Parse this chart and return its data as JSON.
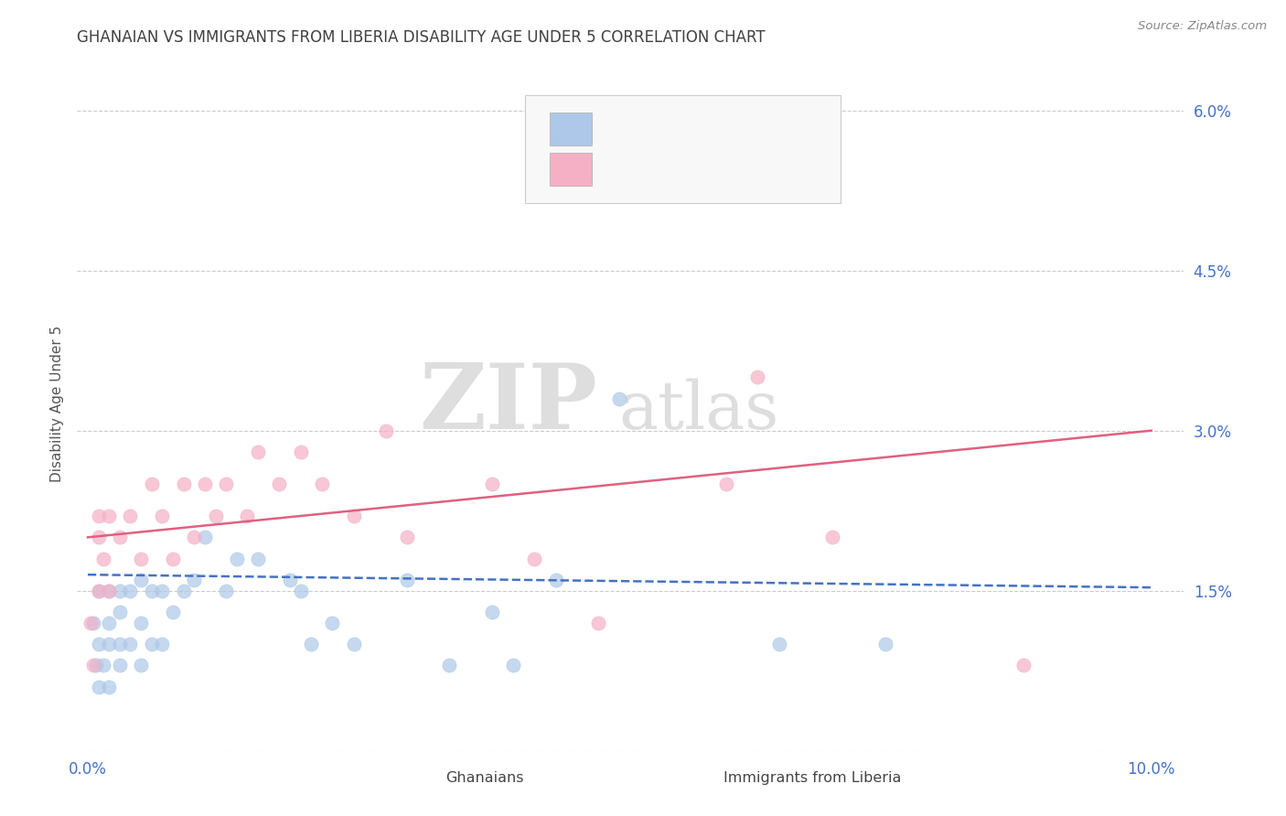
{
  "title": "GHANAIAN VS IMMIGRANTS FROM LIBERIA DISABILITY AGE UNDER 5 CORRELATION CHART",
  "source": "Source: ZipAtlas.com",
  "ylabel": "Disability Age Under 5",
  "ylim": [
    0.0,
    0.065
  ],
  "xlim": [
    -0.001,
    0.103
  ],
  "ytick_vals": [
    0.0,
    0.015,
    0.03,
    0.045,
    0.06
  ],
  "ytick_labels": [
    "",
    "1.5%",
    "3.0%",
    "4.5%",
    "6.0%"
  ],
  "xtick_vals": [
    0.0,
    0.1
  ],
  "xtick_labels": [
    "0.0%",
    "10.0%"
  ],
  "color_blue": "#adc8e8",
  "color_pink": "#f5b0c5",
  "line_blue": "#4472c4",
  "line_pink": "#e06080",
  "title_color": "#404040",
  "axis_label_color": "#4472c4",
  "background_color": "#ffffff",
  "watermark_zip": "ZIP",
  "watermark_atlas": "atlas",
  "gh_trend_x0": 0.0,
  "gh_trend_x1": 0.1,
  "gh_trend_y0": 0.0165,
  "gh_trend_y1": 0.0153,
  "lib_trend_x0": 0.0,
  "lib_trend_x1": 0.1,
  "lib_trend_y0": 0.02,
  "lib_trend_y1": 0.03,
  "ghanaian_x": [
    0.0005,
    0.0008,
    0.001,
    0.001,
    0.001,
    0.0015,
    0.002,
    0.002,
    0.002,
    0.002,
    0.003,
    0.003,
    0.003,
    0.003,
    0.004,
    0.004,
    0.005,
    0.005,
    0.005,
    0.006,
    0.006,
    0.007,
    0.007,
    0.008,
    0.009,
    0.01,
    0.011,
    0.013,
    0.014,
    0.016,
    0.019,
    0.02,
    0.021,
    0.023,
    0.025,
    0.03,
    0.034,
    0.038,
    0.04,
    0.044,
    0.05,
    0.065,
    0.075
  ],
  "ghanaian_y": [
    0.012,
    0.008,
    0.006,
    0.01,
    0.015,
    0.008,
    0.006,
    0.01,
    0.012,
    0.015,
    0.008,
    0.01,
    0.013,
    0.015,
    0.01,
    0.015,
    0.008,
    0.012,
    0.016,
    0.01,
    0.015,
    0.01,
    0.015,
    0.013,
    0.015,
    0.016,
    0.02,
    0.015,
    0.018,
    0.018,
    0.016,
    0.015,
    0.01,
    0.012,
    0.01,
    0.016,
    0.008,
    0.013,
    0.008,
    0.016,
    0.033,
    0.01,
    0.01
  ],
  "liberia_x": [
    0.0003,
    0.0005,
    0.001,
    0.001,
    0.001,
    0.0015,
    0.002,
    0.002,
    0.003,
    0.004,
    0.005,
    0.006,
    0.007,
    0.008,
    0.009,
    0.01,
    0.011,
    0.012,
    0.013,
    0.015,
    0.016,
    0.018,
    0.02,
    0.022,
    0.025,
    0.028,
    0.03,
    0.038,
    0.042,
    0.048,
    0.06,
    0.063,
    0.07,
    0.088
  ],
  "liberia_y": [
    0.012,
    0.008,
    0.015,
    0.02,
    0.022,
    0.018,
    0.015,
    0.022,
    0.02,
    0.022,
    0.018,
    0.025,
    0.022,
    0.018,
    0.025,
    0.02,
    0.025,
    0.022,
    0.025,
    0.022,
    0.028,
    0.025,
    0.028,
    0.025,
    0.022,
    0.03,
    0.02,
    0.025,
    0.018,
    0.012,
    0.025,
    0.035,
    0.02,
    0.008
  ]
}
